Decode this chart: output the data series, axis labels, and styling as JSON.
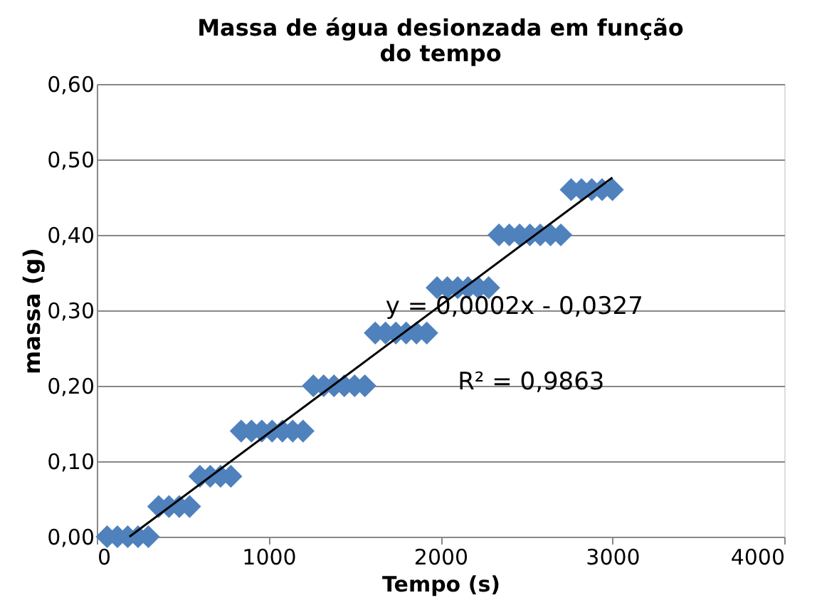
{
  "chart_data": {
    "type": "scatter",
    "title": "Massa de água desionzada em função do tempo",
    "xlabel": "Tempo (s)",
    "ylabel": "massa (g)",
    "xlim": [
      0,
      4000
    ],
    "xticks": [
      0,
      1000,
      2000,
      3000,
      4000
    ],
    "ylim": [
      0,
      0.6
    ],
    "yticks": [
      {
        "value": 0,
        "label": "0,00"
      },
      {
        "value": 0.1,
        "label": "0,10"
      },
      {
        "value": 0.2,
        "label": "0,20"
      },
      {
        "value": 0.3,
        "label": "0,30"
      },
      {
        "value": 0.4,
        "label": "0,40"
      },
      {
        "value": 0.5,
        "label": "0,50"
      },
      {
        "value": 0.6,
        "label": "0,60"
      }
    ],
    "grid": "y",
    "marker": "diamond",
    "series": [
      {
        "color": "#4f81bd",
        "x": [
          60,
          120,
          180,
          240,
          300,
          360,
          420,
          480,
          540,
          600,
          660,
          720,
          780,
          840,
          900,
          960,
          1020,
          1080,
          1140,
          1200,
          1260,
          1320,
          1380,
          1440,
          1500,
          1560,
          1620,
          1680,
          1740,
          1800,
          1860,
          1920,
          1980,
          2040,
          2100,
          2160,
          2220,
          2280,
          2340,
          2400,
          2460,
          2520,
          2580,
          2640,
          2700,
          2760,
          2820,
          2880,
          2940,
          3000
        ],
        "values": [
          0,
          0,
          0,
          0,
          0,
          0.04,
          0.04,
          0.04,
          0.04,
          0.08,
          0.08,
          0.08,
          0.08,
          0.14,
          0.14,
          0.14,
          0.14,
          0.14,
          0.14,
          0.14,
          0.2,
          0.2,
          0.2,
          0.2,
          0.2,
          0.2,
          0.27,
          0.27,
          0.27,
          0.27,
          0.27,
          0.27,
          0.33,
          0.33,
          0.33,
          0.33,
          0.33,
          0.33,
          0.4,
          0.4,
          0.4,
          0.4,
          0.4,
          0.4,
          0.4,
          0.46,
          0.46,
          0.46,
          0.46,
          0.46
        ]
      },
      {
        "type": "line",
        "color": "#000000",
        "x": [
          190,
          3000
        ],
        "values": [
          0.0,
          0.476
        ],
        "line_style": "solid",
        "marker": "none"
      }
    ],
    "annotations": [
      "y = 0,0002x - 0,0327",
      "R² = 0,9863"
    ]
  }
}
